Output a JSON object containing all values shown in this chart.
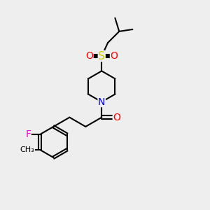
{
  "background_color": "#eeeeee",
  "bond_color": "#000000",
  "bond_width": 1.5,
  "atom_colors": {
    "N": "#0000cc",
    "O": "#ff0000",
    "S": "#cccc00",
    "F": "#ff00cc",
    "C": "#000000"
  },
  "font_size": 9,
  "figsize": [
    3.0,
    3.0
  ],
  "dpi": 100
}
